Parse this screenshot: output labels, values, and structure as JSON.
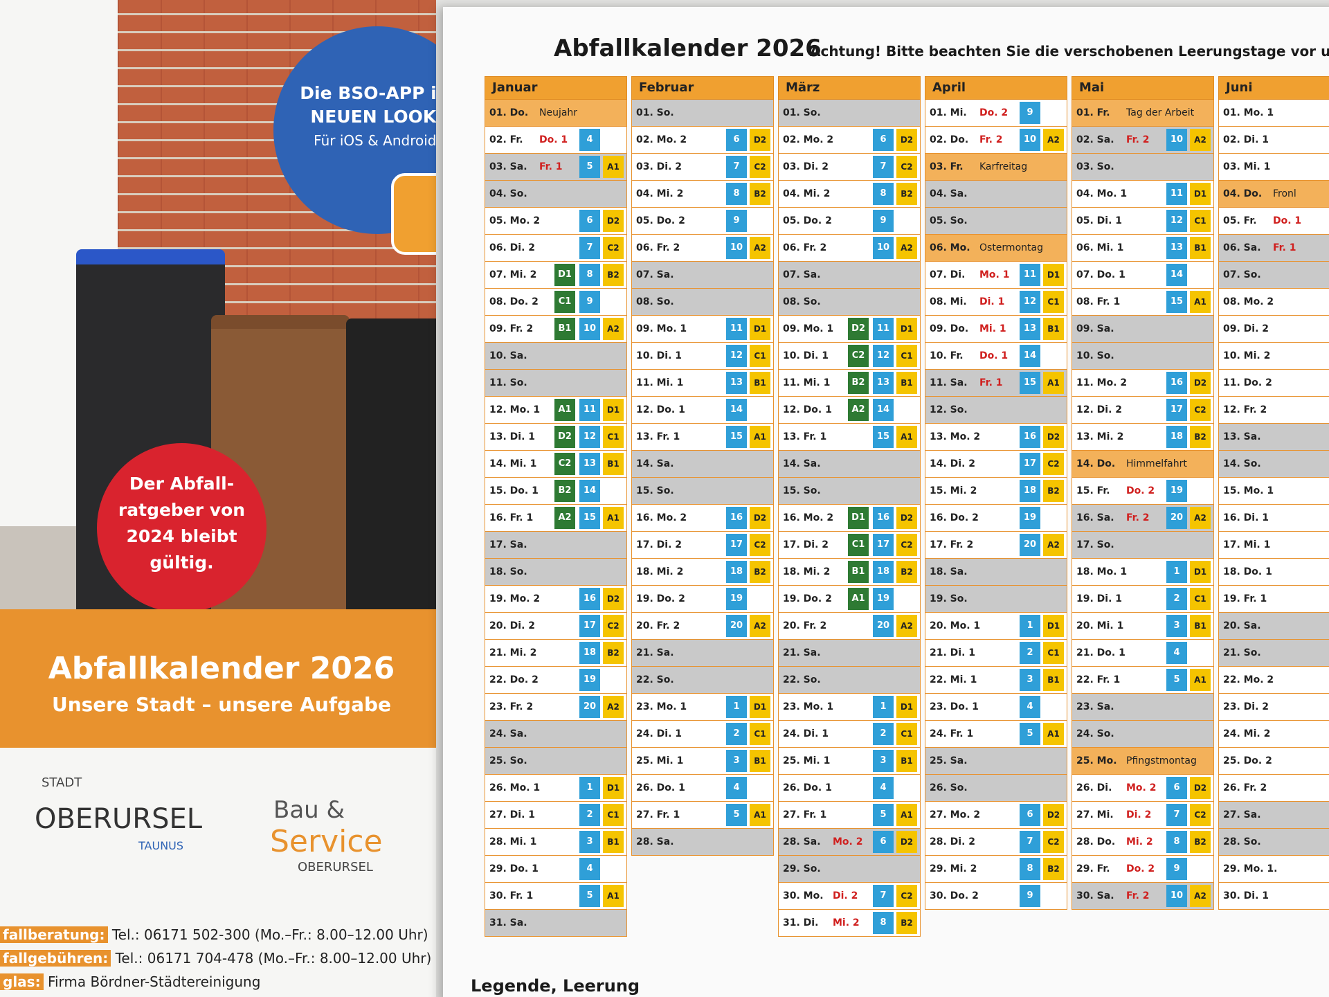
{
  "leaflet": {
    "app_bubble": [
      "Die BSO-APP im",
      "NEUEN LOOK!",
      "Für iOS & Android."
    ],
    "guide_badge": [
      "Der Abfall-",
      "ratgeber von",
      "2024 bleibt",
      "gültig."
    ],
    "banner_title": "Abfallkalender 2026",
    "banner_subtitle": "Unsere Stadt – unsere Aufgabe",
    "logo_city": {
      "top": "STADT",
      "name": "OBERURSEL",
      "sub": "TAUNUS"
    },
    "logo_bso": {
      "line1": "Bau &",
      "line2": "Service",
      "line3": "OBERURSEL"
    },
    "contacts": [
      {
        "label": "fallberatung:",
        "text": "Tel.: 06171 502-300 (Mo.–Fr.: 8.00–12.00 Uhr)"
      },
      {
        "label": "fallgebühren:",
        "text": "Tel.: 06171 704-478 (Mo.–Fr.: 8.00–12.00 Uhr)"
      },
      {
        "label": "glas:",
        "text": "Firma Bördner-Städtereinigung"
      }
    ]
  },
  "calendar": {
    "title": "Abfallkalender 2026",
    "notice": "Achtung! Bitte beachten Sie die verschobenen Leerungstage vor und",
    "legend": "Legende, Leerung",
    "months": [
      {
        "name": "Januar",
        "days": [
          {
            "l": "01. Do.",
            "n": "Neujahr"
          },
          {
            "l": "02. Fr.",
            "r": "Do. 1",
            "b": 4
          },
          {
            "l": "03. Sa.",
            "r": "Fr. 1",
            "b": 5,
            "y": "A1"
          },
          {
            "l": "04. So."
          },
          {
            "l": "05. Mo. 2",
            "b": 6,
            "y": "D2"
          },
          {
            "l": "06. Di. 2",
            "b": 7,
            "y": "C2"
          },
          {
            "l": "07. Mi. 2",
            "g": "D1",
            "b": 8,
            "y": "B2"
          },
          {
            "l": "08. Do. 2",
            "g": "C1",
            "b": 9
          },
          {
            "l": "09. Fr. 2",
            "g": "B1",
            "b": 10,
            "y": "A2"
          },
          {
            "l": "10. Sa."
          },
          {
            "l": "11. So."
          },
          {
            "l": "12. Mo. 1",
            "g": "A1",
            "b": 11,
            "y": "D1"
          },
          {
            "l": "13. Di. 1",
            "g": "D2",
            "b": 12,
            "y": "C1"
          },
          {
            "l": "14. Mi. 1",
            "g": "C2",
            "b": 13,
            "y": "B1"
          },
          {
            "l": "15. Do. 1",
            "g": "B2",
            "b": 14
          },
          {
            "l": "16. Fr. 1",
            "g": "A2",
            "b": 15,
            "y": "A1"
          },
          {
            "l": "17. Sa."
          },
          {
            "l": "18. So."
          },
          {
            "l": "19. Mo. 2",
            "b": 16,
            "y": "D2"
          },
          {
            "l": "20. Di. 2",
            "b": 17,
            "y": "C2"
          },
          {
            "l": "21. Mi. 2",
            "b": 18,
            "y": "B2"
          },
          {
            "l": "22. Do. 2",
            "b": 19
          },
          {
            "l": "23. Fr. 2",
            "b": 20,
            "y": "A2"
          },
          {
            "l": "24. Sa."
          },
          {
            "l": "25. So."
          },
          {
            "l": "26. Mo. 1",
            "b": 1,
            "y": "D1"
          },
          {
            "l": "27. Di. 1",
            "b": 2,
            "y": "C1"
          },
          {
            "l": "28. Mi. 1",
            "b": 3,
            "y": "B1"
          },
          {
            "l": "29. Do. 1",
            "b": 4
          },
          {
            "l": "30. Fr. 1",
            "b": 5,
            "y": "A1"
          },
          {
            "l": "31. Sa."
          }
        ]
      },
      {
        "name": "Februar",
        "days": [
          {
            "l": "01. So."
          },
          {
            "l": "02. Mo. 2",
            "b": 6,
            "y": "D2"
          },
          {
            "l": "03. Di. 2",
            "b": 7,
            "y": "C2"
          },
          {
            "l": "04. Mi. 2",
            "b": 8,
            "y": "B2"
          },
          {
            "l": "05. Do. 2",
            "b": 9
          },
          {
            "l": "06. Fr. 2",
            "b": 10,
            "y": "A2"
          },
          {
            "l": "07. Sa."
          },
          {
            "l": "08. So."
          },
          {
            "l": "09. Mo. 1",
            "b": 11,
            "y": "D1"
          },
          {
            "l": "10. Di. 1",
            "b": 12,
            "y": "C1"
          },
          {
            "l": "11. Mi. 1",
            "b": 13,
            "y": "B1"
          },
          {
            "l": "12. Do. 1",
            "b": 14
          },
          {
            "l": "13. Fr. 1",
            "b": 15,
            "y": "A1"
          },
          {
            "l": "14. Sa."
          },
          {
            "l": "15. So."
          },
          {
            "l": "16. Mo. 2",
            "b": 16,
            "y": "D2"
          },
          {
            "l": "17. Di. 2",
            "b": 17,
            "y": "C2"
          },
          {
            "l": "18. Mi. 2",
            "b": 18,
            "y": "B2"
          },
          {
            "l": "19. Do. 2",
            "b": 19
          },
          {
            "l": "20. Fr. 2",
            "b": 20,
            "y": "A2"
          },
          {
            "l": "21. Sa."
          },
          {
            "l": "22. So."
          },
          {
            "l": "23. Mo. 1",
            "b": 1,
            "y": "D1"
          },
          {
            "l": "24. Di. 1",
            "b": 2,
            "y": "C1"
          },
          {
            "l": "25. Mi. 1",
            "b": 3,
            "y": "B1"
          },
          {
            "l": "26. Do. 1",
            "b": 4
          },
          {
            "l": "27. Fr. 1",
            "b": 5,
            "y": "A1"
          },
          {
            "l": "28. Sa."
          }
        ]
      },
      {
        "name": "März",
        "days": [
          {
            "l": "01. So."
          },
          {
            "l": "02. Mo. 2",
            "b": 6,
            "y": "D2"
          },
          {
            "l": "03. Di. 2",
            "b": 7,
            "y": "C2"
          },
          {
            "l": "04. Mi. 2",
            "b": 8,
            "y": "B2"
          },
          {
            "l": "05. Do. 2",
            "b": 9
          },
          {
            "l": "06. Fr. 2",
            "b": 10,
            "y": "A2"
          },
          {
            "l": "07. Sa."
          },
          {
            "l": "08. So."
          },
          {
            "l": "09. Mo. 1",
            "g": "D2",
            "b": 11,
            "y": "D1"
          },
          {
            "l": "10. Di. 1",
            "g": "C2",
            "b": 12,
            "y": "C1"
          },
          {
            "l": "11. Mi. 1",
            "g": "B2",
            "b": 13,
            "y": "B1"
          },
          {
            "l": "12. Do. 1",
            "g": "A2",
            "b": 14
          },
          {
            "l": "13. Fr. 1",
            "b": 15,
            "y": "A1"
          },
          {
            "l": "14. Sa."
          },
          {
            "l": "15. So."
          },
          {
            "l": "16. Mo. 2",
            "g": "D1",
            "b": 16,
            "y": "D2"
          },
          {
            "l": "17. Di. 2",
            "g": "C1",
            "b": 17,
            "y": "C2"
          },
          {
            "l": "18. Mi. 2",
            "g": "B1",
            "b": 18,
            "y": "B2"
          },
          {
            "l": "19. Do. 2",
            "g": "A1",
            "b": 19
          },
          {
            "l": "20. Fr. 2",
            "b": 20,
            "y": "A2"
          },
          {
            "l": "21. Sa."
          },
          {
            "l": "22. So."
          },
          {
            "l": "23. Mo. 1",
            "b": 1,
            "y": "D1"
          },
          {
            "l": "24. Di. 1",
            "b": 2,
            "y": "C1"
          },
          {
            "l": "25. Mi. 1",
            "b": 3,
            "y": "B1"
          },
          {
            "l": "26. Do. 1",
            "b": 4
          },
          {
            "l": "27. Fr. 1",
            "b": 5,
            "y": "A1"
          },
          {
            "l": "28. Sa.",
            "r": "Mo. 2",
            "b": 6,
            "y": "D2"
          },
          {
            "l": "29. So."
          },
          {
            "l": "30. Mo.",
            "r": "Di. 2",
            "b": 7,
            "y": "C2"
          },
          {
            "l": "31. Di.",
            "r": "Mi. 2",
            "b": 8,
            "y": "B2"
          }
        ]
      },
      {
        "name": "April",
        "days": [
          {
            "l": "01. Mi.",
            "r": "Do. 2",
            "b": 9
          },
          {
            "l": "02. Do.",
            "r": "Fr. 2",
            "b": 10,
            "y": "A2"
          },
          {
            "l": "03. Fr.",
            "n": "Karfreitag"
          },
          {
            "l": "04. Sa."
          },
          {
            "l": "05. So."
          },
          {
            "l": "06. Mo.",
            "n": "Ostermontag"
          },
          {
            "l": "07. Di.",
            "r": "Mo. 1",
            "b": 11,
            "y": "D1"
          },
          {
            "l": "08. Mi.",
            "r": "Di. 1",
            "b": 12,
            "y": "C1"
          },
          {
            "l": "09. Do.",
            "r": "Mi. 1",
            "b": 13,
            "y": "B1"
          },
          {
            "l": "10. Fr.",
            "r": "Do. 1",
            "b": 14
          },
          {
            "l": "11. Sa.",
            "r": "Fr. 1",
            "b": 15,
            "y": "A1"
          },
          {
            "l": "12. So."
          },
          {
            "l": "13. Mo. 2",
            "b": 16,
            "y": "D2"
          },
          {
            "l": "14. Di. 2",
            "b": 17,
            "y": "C2"
          },
          {
            "l": "15. Mi. 2",
            "b": 18,
            "y": "B2"
          },
          {
            "l": "16. Do. 2",
            "b": 19
          },
          {
            "l": "17. Fr. 2",
            "b": 20,
            "y": "A2"
          },
          {
            "l": "18. Sa."
          },
          {
            "l": "19. So."
          },
          {
            "l": "20. Mo. 1",
            "b": 1,
            "y": "D1"
          },
          {
            "l": "21. Di. 1",
            "b": 2,
            "y": "C1"
          },
          {
            "l": "22. Mi. 1",
            "b": 3,
            "y": "B1"
          },
          {
            "l": "23. Do. 1",
            "b": 4
          },
          {
            "l": "24. Fr. 1",
            "b": 5,
            "y": "A1"
          },
          {
            "l": "25. Sa."
          },
          {
            "l": "26. So."
          },
          {
            "l": "27. Mo. 2",
            "b": 6,
            "y": "D2"
          },
          {
            "l": "28. Di. 2",
            "b": 7,
            "y": "C2"
          },
          {
            "l": "29. Mi. 2",
            "b": 8,
            "y": "B2"
          },
          {
            "l": "30. Do. 2",
            "b": 9
          }
        ]
      },
      {
        "name": "Mai",
        "days": [
          {
            "l": "01. Fr.",
            "n": "Tag der Arbeit"
          },
          {
            "l": "02. Sa.",
            "r": "Fr. 2",
            "b": 10,
            "y": "A2"
          },
          {
            "l": "03. So."
          },
          {
            "l": "04. Mo. 1",
            "b": 11,
            "y": "D1"
          },
          {
            "l": "05. Di. 1",
            "b": 12,
            "y": "C1"
          },
          {
            "l": "06. Mi. 1",
            "b": 13,
            "y": "B1"
          },
          {
            "l": "07. Do. 1",
            "b": 14
          },
          {
            "l": "08. Fr. 1",
            "b": 15,
            "y": "A1"
          },
          {
            "l": "09. Sa."
          },
          {
            "l": "10. So."
          },
          {
            "l": "11. Mo. 2",
            "b": 16,
            "y": "D2"
          },
          {
            "l": "12. Di. 2",
            "b": 17,
            "y": "C2"
          },
          {
            "l": "13. Mi. 2",
            "b": 18,
            "y": "B2"
          },
          {
            "l": "14. Do.",
            "n": "Himmelfahrt"
          },
          {
            "l": "15. Fr.",
            "r": "Do. 2",
            "b": 19
          },
          {
            "l": "16. Sa.",
            "r": "Fr. 2",
            "b": 20,
            "y": "A2"
          },
          {
            "l": "17. So."
          },
          {
            "l": "18. Mo. 1",
            "b": 1,
            "y": "D1"
          },
          {
            "l": "19. Di. 1",
            "b": 2,
            "y": "C1"
          },
          {
            "l": "20. Mi. 1",
            "b": 3,
            "y": "B1"
          },
          {
            "l": "21. Do. 1",
            "b": 4
          },
          {
            "l": "22. Fr. 1",
            "b": 5,
            "y": "A1"
          },
          {
            "l": "23. Sa."
          },
          {
            "l": "24. So."
          },
          {
            "l": "25. Mo.",
            "n": "Pfingstmontag"
          },
          {
            "l": "26. Di.",
            "r": "Mo. 2",
            "b": 6,
            "y": "D2"
          },
          {
            "l": "27. Mi.",
            "r": "Di. 2",
            "b": 7,
            "y": "C2"
          },
          {
            "l": "28. Do.",
            "r": "Mi. 2",
            "b": 8,
            "y": "B2"
          },
          {
            "l": "29. Fr.",
            "r": "Do. 2",
            "b": 9
          },
          {
            "l": "30. Sa.",
            "r": "Fr. 2",
            "b": 10,
            "y": "A2"
          }
        ]
      },
      {
        "name": "Juni",
        "days": [
          {
            "l": "01. Mo. 1"
          },
          {
            "l": "02. Di. 1"
          },
          {
            "l": "03. Mi. 1"
          },
          {
            "l": "04. Do.",
            "n": "Fronl"
          },
          {
            "l": "05. Fr.",
            "r": "Do. 1"
          },
          {
            "l": "06. Sa.",
            "r": "Fr. 1"
          },
          {
            "l": "07. So."
          },
          {
            "l": "08. Mo. 2"
          },
          {
            "l": "09. Di. 2"
          },
          {
            "l": "10. Mi. 2"
          },
          {
            "l": "11. Do. 2"
          },
          {
            "l": "12. Fr. 2"
          },
          {
            "l": "13. Sa."
          },
          {
            "l": "14. So."
          },
          {
            "l": "15. Mo. 1"
          },
          {
            "l": "16. Di. 1"
          },
          {
            "l": "17. Mi. 1"
          },
          {
            "l": "18. Do. 1"
          },
          {
            "l": "19. Fr. 1"
          },
          {
            "l": "20. Sa."
          },
          {
            "l": "21. So."
          },
          {
            "l": "22. Mo. 2"
          },
          {
            "l": "23. Di. 2"
          },
          {
            "l": "24. Mi. 2"
          },
          {
            "l": "25. Do. 2"
          },
          {
            "l": "26. Fr. 2"
          },
          {
            "l": "27. Sa."
          },
          {
            "l": "28. So."
          },
          {
            "l": "29. Mo. 1."
          },
          {
            "l": "30. Di. 1"
          }
        ]
      }
    ]
  }
}
